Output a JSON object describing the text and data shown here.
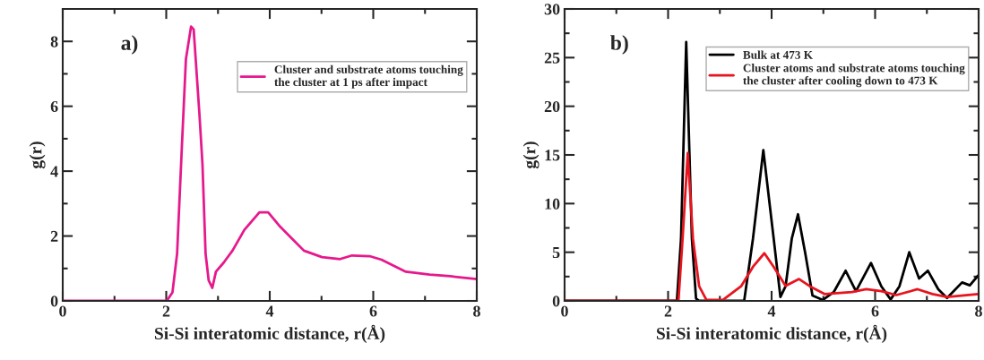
{
  "chart_data": [
    {
      "type": "line",
      "xlabel": "Si-Si interatomic distance, r(Å)",
      "ylabel": "g(r)",
      "annotations": [
        "a)"
      ],
      "xlim": [
        0,
        8
      ],
      "ylim": [
        0,
        9
      ],
      "xticks": [
        0,
        2,
        4,
        6,
        8
      ],
      "yticks": [
        0,
        2,
        4,
        6,
        8
      ],
      "grid": false,
      "legend": "top right",
      "series": [
        {
          "name": "Cluster and substrate atoms touching\nthe cluster at 1 ps after impact",
          "color": "#e6198c",
          "x": [
            0,
            2.01,
            2.12,
            2.21,
            2.3,
            2.38,
            2.48,
            2.53,
            2.64,
            2.7,
            2.76,
            2.82,
            2.89,
            2.96,
            3.11,
            3.28,
            3.51,
            3.8,
            3.97,
            4.2,
            4.43,
            4.66,
            5.01,
            5.36,
            5.59,
            5.93,
            6.16,
            6.63,
            7.09,
            7.49,
            8.0
          ],
          "values": [
            0,
            0,
            0.26,
            1.46,
            4.68,
            7.45,
            8.46,
            8.37,
            5.79,
            4.22,
            1.46,
            0.63,
            0.4,
            0.9,
            1.18,
            1.55,
            2.19,
            2.73,
            2.73,
            2.29,
            1.92,
            1.55,
            1.35,
            1.29,
            1.4,
            1.38,
            1.27,
            0.9,
            0.81,
            0.76,
            0.67
          ]
        }
      ]
    },
    {
      "type": "line",
      "xlabel": "Si-Si interatomic distance, r(Å)",
      "ylabel": "g(r)",
      "annotations": [
        "b)"
      ],
      "xlim": [
        0,
        8
      ],
      "ylim": [
        0,
        30
      ],
      "xticks": [
        0,
        2,
        4,
        6,
        8
      ],
      "yticks": [
        0,
        5,
        10,
        15,
        20,
        25,
        30
      ],
      "grid": false,
      "legend": "top right",
      "series": [
        {
          "name": "Bulk at 473 K",
          "color": "#000000",
          "x": [
            0,
            2.17,
            2.25,
            2.35,
            2.46,
            2.54,
            2.6,
            3.47,
            3.64,
            3.84,
            4.04,
            4.17,
            4.27,
            4.39,
            4.51,
            4.65,
            4.79,
            4.99,
            5.2,
            5.43,
            5.63,
            5.92,
            6.12,
            6.3,
            6.47,
            6.66,
            6.85,
            7.02,
            7.22,
            7.39,
            7.68,
            7.83,
            7.99
          ],
          "values": [
            0,
            0,
            6.4,
            26.6,
            6.4,
            0.25,
            0,
            0,
            6.4,
            15.5,
            6.4,
            0.4,
            1.5,
            6.4,
            8.9,
            4.9,
            0.55,
            0.1,
            0.9,
            3.1,
            1.0,
            3.9,
            1.5,
            0.15,
            1.5,
            5.0,
            2.3,
            3.1,
            1.2,
            0.3,
            1.9,
            1.6,
            2.6
          ]
        },
        {
          "name": "Cluster atoms and substrate atoms touching\nthe cluster after cooling down to 473 K",
          "color": "#e8141e",
          "x": [
            0,
            2.2,
            2.28,
            2.38,
            2.48,
            2.6,
            2.74,
            3.06,
            3.41,
            3.64,
            3.86,
            4.04,
            4.27,
            4.53,
            4.74,
            5.03,
            5.55,
            5.83,
            6.12,
            6.41,
            6.82,
            7.11,
            7.39,
            7.99
          ],
          "values": [
            0,
            0,
            6.4,
            15.2,
            6.4,
            1.5,
            0.1,
            0.1,
            1.5,
            3.5,
            4.9,
            3.5,
            1.55,
            2.25,
            1.5,
            0.7,
            0.9,
            1.2,
            1.0,
            0.6,
            1.2,
            0.7,
            0.4,
            0.7
          ]
        }
      ]
    }
  ]
}
